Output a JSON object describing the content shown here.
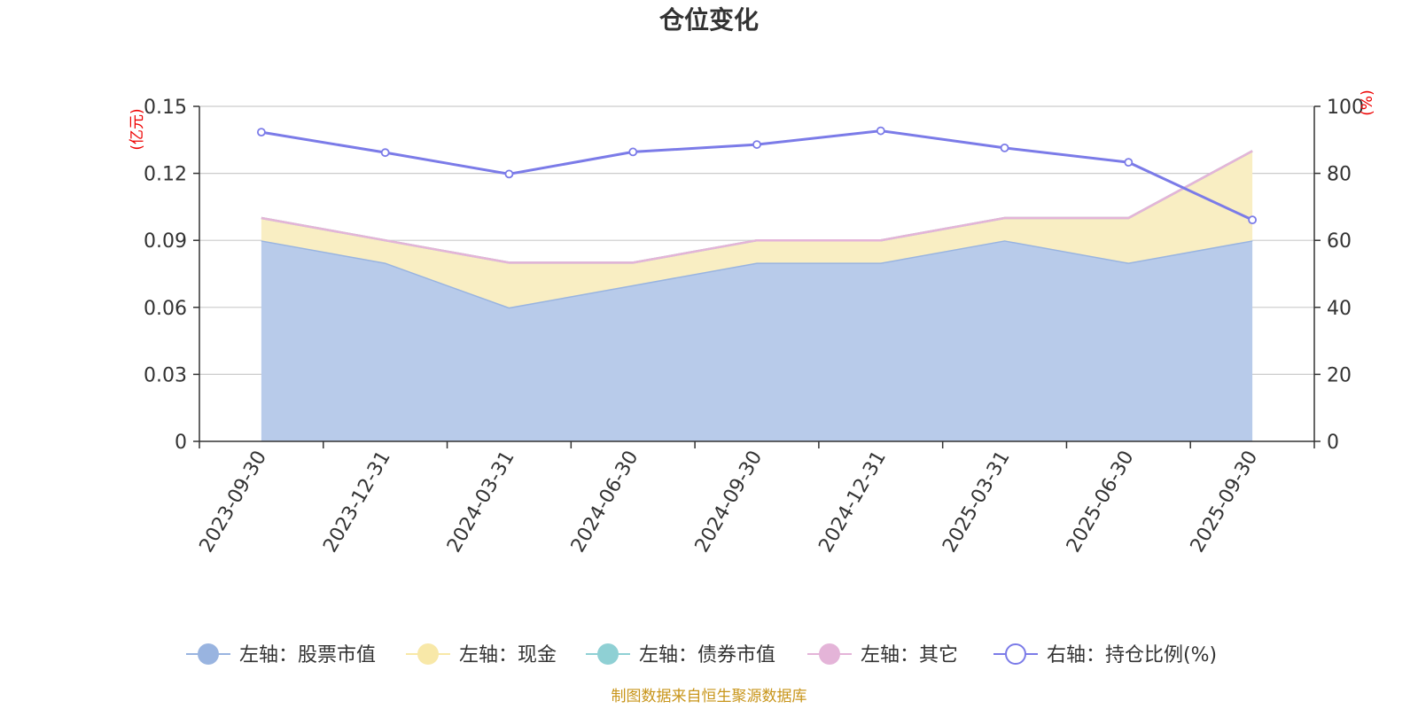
{
  "colors": {
    "stock": "#99b4e0",
    "stock_fill": "#b8cbea",
    "cash": "#f8e8a8",
    "cash_fill": "#f9eec3",
    "bond": "#8fd0d4",
    "other": "#e4b4d8",
    "ratio": "#7b7be8",
    "unit": "#ee0000",
    "source": "#c8951a",
    "axis": "#333333",
    "grid": "#cccccc"
  },
  "chart_data": {
    "type": "area",
    "title": "仓位变化",
    "categories": [
      "2023-09-30",
      "2023-12-31",
      "2024-03-31",
      "2024-06-30",
      "2024-09-30",
      "2024-12-31",
      "2025-03-31",
      "2025-06-30",
      "2025-09-30"
    ],
    "left_axis": {
      "unit": "(亿元)",
      "min": 0,
      "max": 0.15,
      "ticks": [
        "0",
        "0.03",
        "0.06",
        "0.09",
        "0.12",
        "0.15"
      ]
    },
    "right_axis": {
      "unit": "(%)",
      "min": 0,
      "max": 100,
      "ticks": [
        "0",
        "20",
        "40",
        "60",
        "80",
        "100"
      ]
    },
    "grid": true,
    "legend_position": "bottom",
    "series": [
      {
        "name": "左轴：股票市值",
        "axis": "left",
        "stacked": true,
        "values": [
          0.09,
          0.08,
          0.06,
          0.07,
          0.08,
          0.08,
          0.09,
          0.08,
          0.09
        ]
      },
      {
        "name": "左轴：现金",
        "axis": "left",
        "stacked": true,
        "values": [
          0.01,
          0.01,
          0.02,
          0.01,
          0.01,
          0.01,
          0.01,
          0.02,
          0.04
        ]
      },
      {
        "name": "左轴：债券市值",
        "axis": "left",
        "stacked": true,
        "values": [
          0,
          0,
          0,
          0,
          0,
          0,
          0,
          0,
          0
        ]
      },
      {
        "name": "左轴：其它",
        "axis": "left",
        "stacked": true,
        "values": [
          0,
          0,
          0,
          0,
          0,
          0,
          0,
          0,
          0
        ]
      },
      {
        "name": "右轴：持仓比例(%)",
        "axis": "right",
        "stacked": false,
        "values": [
          92.3,
          86.2,
          79.8,
          86.4,
          88.6,
          92.7,
          87.6,
          83.3,
          66.1
        ]
      }
    ]
  },
  "source_text": "制图数据来自恒生聚源数据库"
}
